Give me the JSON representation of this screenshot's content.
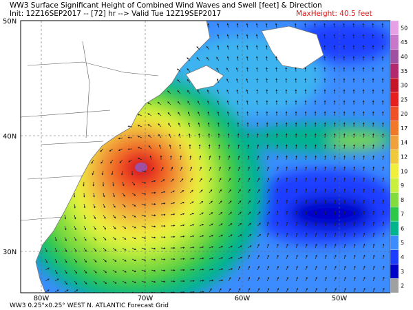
{
  "header": {
    "title": "WW3 Surface Significant Height of Combined Wind Waves and Swell [feet] & Direction",
    "init": "Init: 12Z16SEP2017 -- [72] hr --> Valid Tue 12Z19SEP2017",
    "max_height": "MaxHeight: 40.5 feet"
  },
  "axes": {
    "lat_labels": [
      "50N",
      "40N",
      "30N"
    ],
    "lon_labels": [
      "80W",
      "70W",
      "60W",
      "50W"
    ]
  },
  "colorbar": {
    "levels": [
      2,
      3,
      4,
      5,
      6,
      7,
      8,
      9,
      10,
      12,
      14,
      17,
      20,
      25,
      30,
      35,
      40,
      45,
      50
    ],
    "colors": [
      "#a0a0a0",
      "#0000c8",
      "#1e3cff",
      "#3c8cff",
      "#00b48c",
      "#2cc84a",
      "#82dc3c",
      "#c8f03c",
      "#f0f03c",
      "#f0c83c",
      "#f0a03c",
      "#f07828",
      "#f05028",
      "#e61e1e",
      "#c81428",
      "#b4286e",
      "#a050a0",
      "#c878c8",
      "#e6a0e6"
    ]
  },
  "footer": "WW3 0.25°x0.25° WEST N. ATLANTIC Forecast Grid"
}
